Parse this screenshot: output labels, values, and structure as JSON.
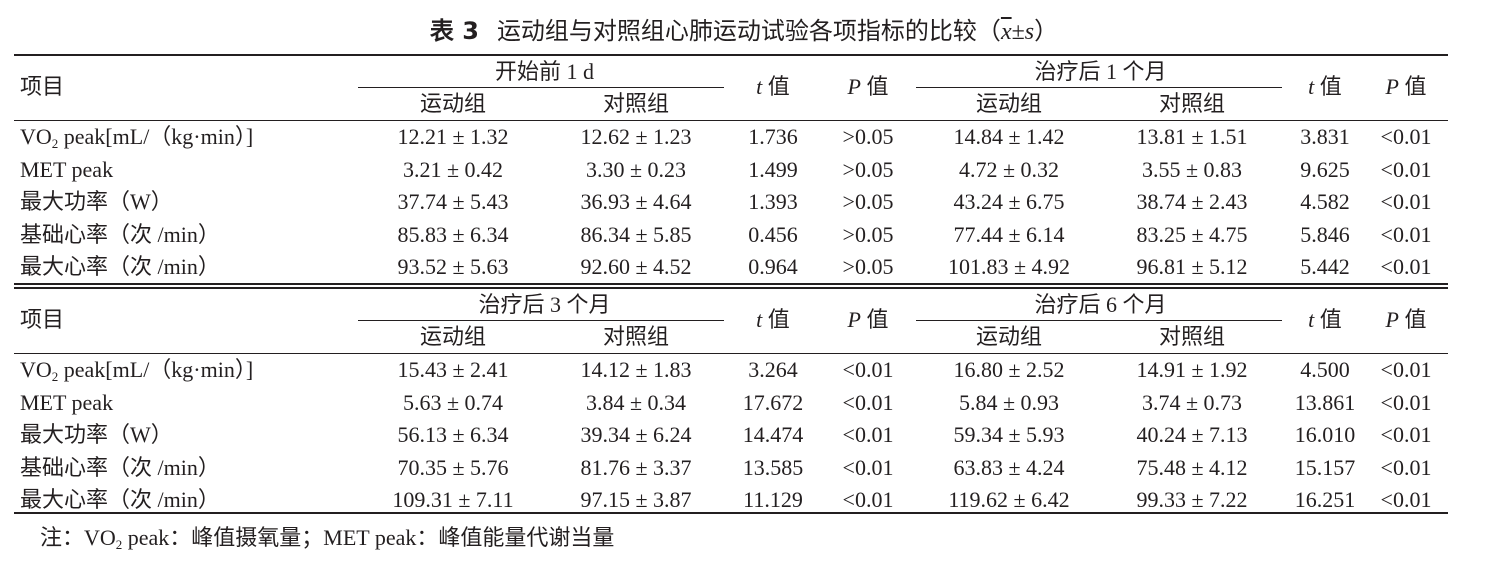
{
  "caption": {
    "label": "表 3",
    "title": "运动组与对照组心肺运动试验各项指标的比较（",
    "xbar": "x",
    "pm": "±",
    "s": "s",
    "close": "）"
  },
  "header_common": {
    "item": "项目",
    "exercise": "运动组",
    "control": "对照组",
    "t_italic": "t",
    "t_char": " 值",
    "p_italic": "P",
    "p_char": " 值"
  },
  "sections": [
    {
      "period_a": "开始前 1 d",
      "period_b": "治疗后 1 个月",
      "rows": [
        {
          "item_prefix": "VO",
          "item_sub": "2",
          "item_suffix": " peak[mL/（kg·min）]",
          "a1": "12.21 ± 1.32",
          "a2": "12.62 ± 1.23",
          "ta": "1.736",
          "pa": ">0.05",
          "b1": "14.84 ± 1.42",
          "b2": "13.81 ± 1.51",
          "tb": "3.831",
          "pb": "<0.01"
        },
        {
          "item_prefix": "MET peak",
          "item_sub": "",
          "item_suffix": "",
          "a1": "3.21 ± 0.42",
          "a2": "3.30 ± 0.23",
          "ta": "1.499",
          "pa": ">0.05",
          "b1": "4.72 ± 0.32",
          "b2": "3.55 ± 0.83",
          "tb": "9.625",
          "pb": "<0.01"
        },
        {
          "item_prefix": "最大功率（W）",
          "item_sub": "",
          "item_suffix": "",
          "a1": "37.74 ± 5.43",
          "a2": "36.93 ± 4.64",
          "ta": "1.393",
          "pa": ">0.05",
          "b1": "43.24 ± 6.75",
          "b2": "38.74 ± 2.43",
          "tb": "4.582",
          "pb": "<0.01"
        },
        {
          "item_prefix": "基础心率（次 /min）",
          "item_sub": "",
          "item_suffix": "",
          "a1": "85.83 ± 6.34",
          "a2": "86.34 ± 5.85",
          "ta": "0.456",
          "pa": ">0.05",
          "b1": "77.44 ± 6.14",
          "b2": "83.25 ± 4.75",
          "tb": "5.846",
          "pb": "<0.01"
        },
        {
          "item_prefix": "最大心率（次 /min）",
          "item_sub": "",
          "item_suffix": "",
          "a1": "93.52 ± 5.63",
          "a2": "92.60 ± 4.52",
          "ta": "0.964",
          "pa": ">0.05",
          "b1": "101.83 ± 4.92",
          "b2": "96.81 ± 5.12",
          "tb": "5.442",
          "pb": "<0.01"
        }
      ]
    },
    {
      "period_a": "治疗后 3 个月",
      "period_b": "治疗后 6 个月",
      "rows": [
        {
          "item_prefix": "VO",
          "item_sub": "2",
          "item_suffix": " peak[mL/（kg·min）]",
          "a1": "15.43 ± 2.41",
          "a2": "14.12 ± 1.83",
          "ta": "3.264",
          "pa": "<0.01",
          "b1": "16.80 ± 2.52",
          "b2": "14.91 ± 1.92",
          "tb": "4.500",
          "pb": "<0.01"
        },
        {
          "item_prefix": "MET peak",
          "item_sub": "",
          "item_suffix": "",
          "a1": "5.63 ± 0.74",
          "a2": "3.84 ± 0.34",
          "ta": "17.672",
          "pa": "<0.01",
          "b1": "5.84 ± 0.93",
          "b2": "3.74 ± 0.73",
          "tb": "13.861",
          "pb": "<0.01"
        },
        {
          "item_prefix": "最大功率（W）",
          "item_sub": "",
          "item_suffix": "",
          "a1": "56.13 ± 6.34",
          "a2": "39.34 ± 6.24",
          "ta": "14.474",
          "pa": "<0.01",
          "b1": "59.34 ± 5.93",
          "b2": "40.24 ± 7.13",
          "tb": "16.010",
          "pb": "<0.01"
        },
        {
          "item_prefix": "基础心率（次 /min）",
          "item_sub": "",
          "item_suffix": "",
          "a1": "70.35 ± 5.76",
          "a2": "81.76 ± 3.37",
          "ta": "13.585",
          "pa": "<0.01",
          "b1": "63.83 ± 4.24",
          "b2": "75.48 ± 4.12",
          "tb": "15.157",
          "pb": "<0.01"
        },
        {
          "item_prefix": "最大心率（次 /min）",
          "item_sub": "",
          "item_suffix": "",
          "a1": "109.31 ± 7.11",
          "a2": "97.15 ± 3.87",
          "ta": "11.129",
          "pa": "<0.01",
          "b1": "119.62 ± 6.42",
          "b2": "99.33 ± 7.22",
          "tb": "16.251",
          "pb": "<0.01"
        }
      ]
    }
  ],
  "note": {
    "lead": "注：VO",
    "sub": "2",
    "rest": " peak：峰值摄氧量；MET peak：峰值能量代谢当量"
  }
}
